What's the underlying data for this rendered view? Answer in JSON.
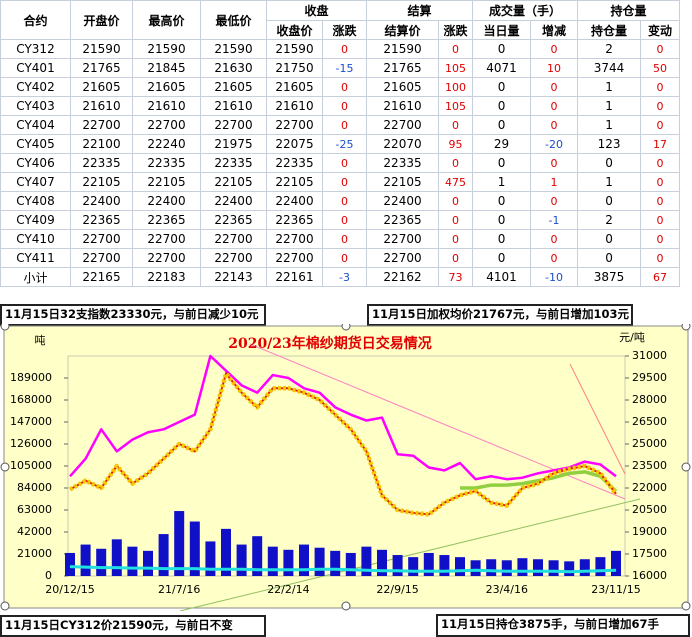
{
  "table": {
    "header_top": [
      "合约",
      "开盘价",
      "最高价",
      "最低价",
      "收盘",
      "结算",
      "成交量（手）",
      "持仓量"
    ],
    "header_sub": [
      "收盘价",
      "涨跌",
      "结算价",
      "涨跌",
      "当日量",
      "增减",
      "持仓量",
      "变动"
    ],
    "rows": [
      [
        "CY312",
        21590,
        21590,
        21590,
        21590,
        0,
        21590,
        0,
        0,
        0,
        2,
        0
      ],
      [
        "CY401",
        21765,
        21845,
        21630,
        21750,
        -15,
        21765,
        105,
        4071,
        10,
        3744,
        50
      ],
      [
        "CY402",
        21605,
        21605,
        21605,
        21605,
        0,
        21605,
        100,
        0,
        0,
        1,
        0
      ],
      [
        "CY403",
        21610,
        21610,
        21610,
        21610,
        0,
        21610,
        105,
        0,
        0,
        1,
        0
      ],
      [
        "CY404",
        22700,
        22700,
        22700,
        22700,
        0,
        22700,
        0,
        0,
        0,
        1,
        0
      ],
      [
        "CY405",
        22100,
        22240,
        21975,
        22075,
        -25,
        22070,
        95,
        29,
        -20,
        123,
        17
      ],
      [
        "CY406",
        22335,
        22335,
        22335,
        22335,
        0,
        22335,
        0,
        0,
        0,
        0,
        0
      ],
      [
        "CY407",
        22105,
        22105,
        22105,
        22105,
        0,
        22105,
        475,
        1,
        1,
        1,
        0
      ],
      [
        "CY408",
        22400,
        22400,
        22400,
        22400,
        0,
        22400,
        0,
        0,
        0,
        0,
        0
      ],
      [
        "CY409",
        22365,
        22365,
        22365,
        22365,
        0,
        22365,
        0,
        0,
        -1,
        2,
        0
      ],
      [
        "CY410",
        22700,
        22700,
        22700,
        22700,
        0,
        22700,
        0,
        0,
        0,
        0,
        0
      ],
      [
        "CY411",
        22700,
        22700,
        22700,
        22700,
        0,
        22700,
        0,
        0,
        0,
        0,
        0
      ],
      [
        "小计",
        22165,
        22183,
        22143,
        22161,
        -3,
        22162,
        73,
        4101,
        -10,
        3875,
        67
      ]
    ]
  },
  "notes": [
    "11月15日32支指数23330元，与前日减少10元",
    "11月15日加权均价21767元，与前日增加103元",
    "11月15日CY312价21590元，与前日不变",
    "11月15日持仓3875手，与前日增加67手"
  ],
  "chart_data": {
    "type": "combo",
    "title": "2020/23年棉纱期货日交易情况",
    "ylabel": "吨",
    "y2label": "元/吨",
    "categories": [
      "20/12/15",
      null,
      null,
      null,
      null,
      null,
      null,
      "21/7/16",
      null,
      null,
      null,
      null,
      null,
      null,
      "22/2/14",
      null,
      null,
      null,
      null,
      null,
      null,
      "22/9/15",
      null,
      null,
      null,
      null,
      null,
      null,
      "23/4/16",
      null,
      null,
      null,
      null,
      null,
      null,
      "23/11/15"
    ],
    "ylim": [
      0,
      210000
    ],
    "yticks": [
      0,
      21000,
      42000,
      63000,
      84000,
      105000,
      126000,
      147000,
      168000,
      189000
    ],
    "y2lim": [
      16000,
      31000
    ],
    "y2ticks": [
      16000,
      17500,
      19000,
      20500,
      22000,
      23500,
      25000,
      26500,
      28000,
      29500,
      31000
    ],
    "series": [
      {
        "type": "bar",
        "color": "#1010c8",
        "values": [
          22000,
          30000,
          26000,
          35000,
          28000,
          24000,
          40000,
          62000,
          52000,
          33000,
          45000,
          30000,
          38000,
          28000,
          25000,
          30000,
          27000,
          24000,
          22000,
          28000,
          25000,
          20000,
          18000,
          22000,
          20000,
          18000,
          15000,
          16000,
          15000,
          17000,
          16000,
          15000,
          14000,
          16000,
          18000,
          24000
        ]
      },
      {
        "type": "line",
        "color": "#20e0e0",
        "width": 3,
        "values": [
          9000,
          8500,
          8000,
          8000,
          7500,
          7500,
          7000,
          7000,
          7000,
          6500,
          6500,
          6500,
          6000,
          6000,
          6000,
          6000,
          6500,
          6500,
          6000,
          5500,
          5000,
          5000,
          4500,
          4500,
          4500,
          5000,
          5500,
          5000,
          4500,
          4500,
          4500,
          4500,
          4000,
          4500,
          5000,
          5500
        ]
      },
      {
        "type": "line",
        "axis": "y2",
        "color": "#ff00ff",
        "width": 2.5,
        "values": [
          22800,
          24000,
          26000,
          24500,
          25300,
          25800,
          26000,
          26500,
          27000,
          31000,
          30000,
          29000,
          28500,
          29700,
          29500,
          28800,
          28500,
          27500,
          27000,
          26600,
          26800,
          24300,
          24200,
          23400,
          23200,
          23700,
          22600,
          22800,
          22600,
          22700,
          23000,
          23200,
          23400,
          23800,
          23600,
          22800
        ]
      },
      {
        "type": "line",
        "axis": "y2",
        "color": "#90d040",
        "width": 3.5,
        "values": [
          null,
          null,
          null,
          null,
          null,
          null,
          null,
          null,
          null,
          null,
          null,
          null,
          null,
          null,
          null,
          null,
          null,
          null,
          null,
          null,
          null,
          null,
          null,
          null,
          null,
          22000,
          22000,
          22200,
          22200,
          22300,
          22500,
          22700,
          23000,
          23100,
          22800,
          21767
        ]
      },
      {
        "type": "line",
        "axis": "y2",
        "color": "#f5c800",
        "width": 4.5,
        "dash": "3 2",
        "values": [
          21900,
          22500,
          22000,
          23500,
          22300,
          23000,
          24000,
          25000,
          24500,
          26000,
          29800,
          28500,
          27500,
          28800,
          28800,
          28500,
          28000,
          27000,
          26000,
          24500,
          21500,
          20500,
          20300,
          20200,
          21000,
          21500,
          21800,
          21000,
          20800,
          22000,
          22300,
          23000,
          23300,
          23500,
          23000,
          21600
        ]
      }
    ]
  }
}
